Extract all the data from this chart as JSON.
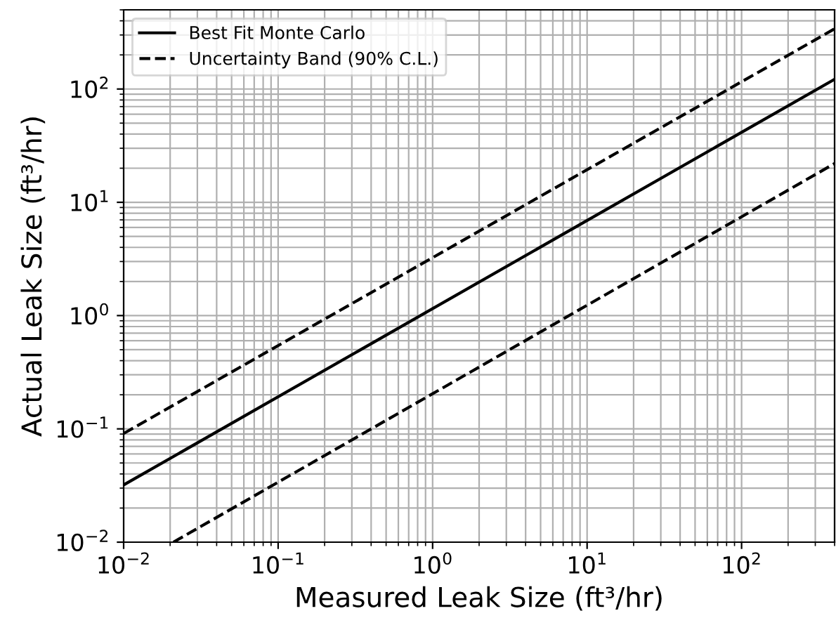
{
  "chart_data": {
    "type": "line",
    "xlabel": "Measured Leak Size (ft³/hr)",
    "ylabel": "Actual Leak Size (ft³/hr)",
    "series": [
      {
        "name": "Best Fit Monte Carlo",
        "color": "#000000",
        "line_style": "solid",
        "x": [
          0.01,
          400
        ],
        "values": [
          0.032,
          122
        ]
      },
      {
        "name": "Uncertainty Band (90% C.L.)",
        "color": "#000000",
        "line_style": "dashed",
        "x": [
          0.01,
          400
        ],
        "values": [
          0.091,
          340
        ]
      },
      {
        "color": "#000000",
        "line_style": "dashed",
        "x": [
          0.021,
          400
        ],
        "values": [
          0.01,
          22
        ]
      }
    ],
    "log": "xy",
    "xlim": [
      0.01,
      400
    ],
    "ylim": [
      0.01,
      500
    ],
    "xticks": [
      {
        "value": 0.01,
        "label": "10$^{−2}$"
      },
      {
        "value": 0.1,
        "label": "10$^{−1}$"
      },
      {
        "value": 1,
        "label": "10$^{0}$"
      },
      {
        "value": 10,
        "label": "10$^{1}$"
      },
      {
        "value": 100,
        "label": "10$^{2}$"
      }
    ],
    "yticks": [
      {
        "value": 0.01,
        "label": "10$^{−2}$"
      },
      {
        "value": 0.1,
        "label": "10$^{−1}$"
      },
      {
        "value": 1,
        "label": "10$^{0}$"
      },
      {
        "value": 10,
        "label": "10$^{1}$"
      },
      {
        "value": 100,
        "label": "10$^{2}$"
      }
    ],
    "grid": true,
    "legend": "top left",
    "marker": "none"
  }
}
